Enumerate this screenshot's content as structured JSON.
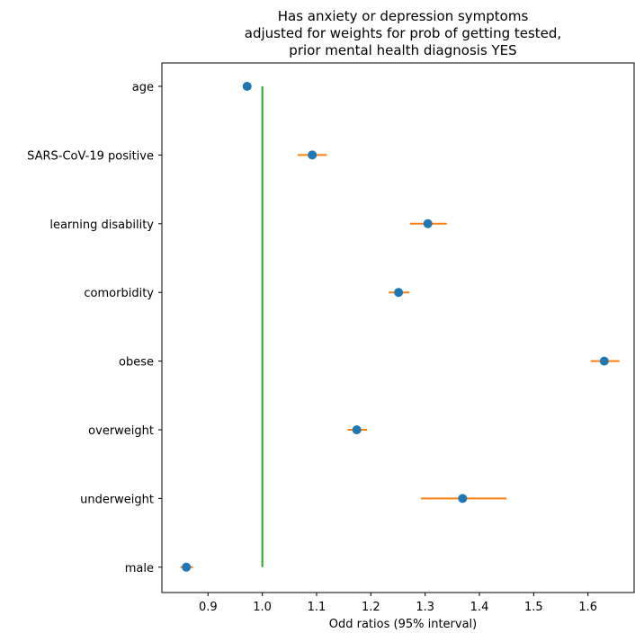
{
  "chart_data": {
    "type": "scatter",
    "title_lines": [
      "Has anxiety or depression symptoms",
      "adjusted for weights for prob of getting tested,",
      "prior mental health diagnosis YES"
    ],
    "xlabel": "Odd ratios (95% interval)",
    "ylabel": "",
    "xlim": [
      0.815,
      1.685
    ],
    "xticks": [
      0.9,
      1.0,
      1.1,
      1.2,
      1.3,
      1.4,
      1.5,
      1.6
    ],
    "xtick_labels": [
      "0.9",
      "1.0",
      "1.1",
      "1.2",
      "1.3",
      "1.4",
      "1.5",
      "1.6"
    ],
    "reference_value": 1.0,
    "categories": [
      "age",
      "SARS-CoV-19 positive",
      "learning disability",
      "comorbidity",
      "obese",
      "overweight",
      "underweight",
      "male"
    ],
    "estimates": [
      0.972,
      1.092,
      1.305,
      1.251,
      1.63,
      1.174,
      1.369,
      0.86
    ],
    "ci_low": [
      0.967,
      1.065,
      1.272,
      1.233,
      1.605,
      1.157,
      1.292,
      0.849
    ],
    "ci_high": [
      0.977,
      1.119,
      1.34,
      1.271,
      1.658,
      1.193,
      1.45,
      0.872
    ],
    "grid": false,
    "colors": {
      "point": "#1f77b4",
      "interval": "#ff7f0e",
      "reference": "#2ca02c",
      "axis": "#000000"
    }
  }
}
